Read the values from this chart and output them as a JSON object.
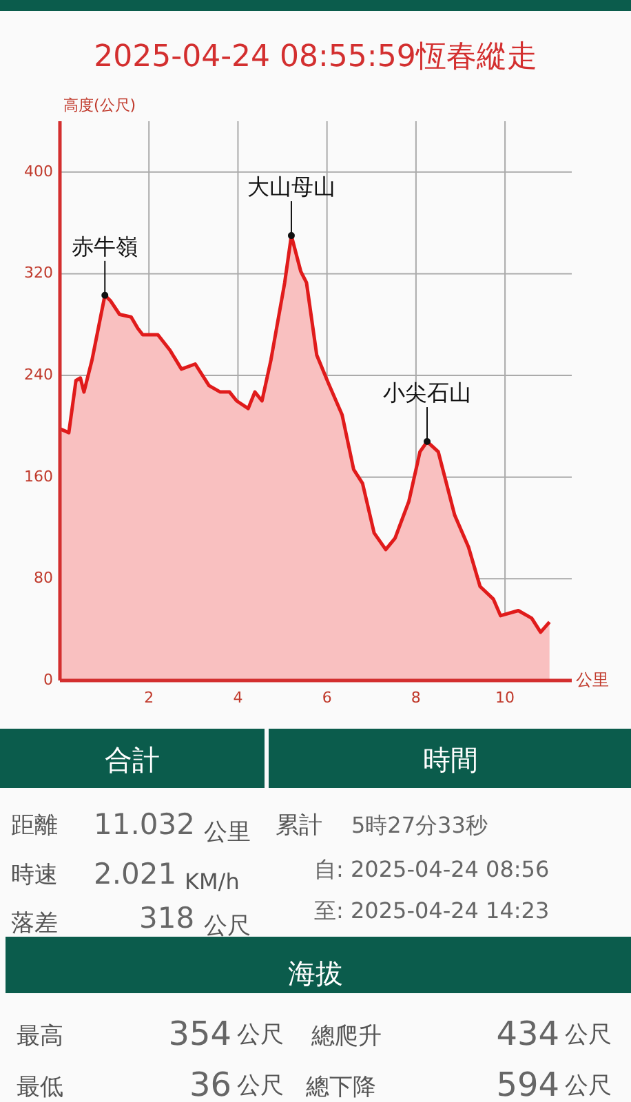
{
  "chart_data": [
    {
      "type": "area",
      "title": "2025-04-24 08:55:59恆春縱走",
      "xlabel": "公里",
      "ylabel": "高度(公尺)",
      "x": [
        0,
        0.2,
        0.36,
        0.46,
        0.54,
        0.72,
        1.01,
        1.13,
        1.34,
        1.6,
        1.75,
        1.86,
        2.2,
        2.47,
        2.73,
        3.04,
        3.35,
        3.6,
        3.81,
        3.97,
        4.23,
        4.38,
        4.54,
        4.74,
        5.05,
        5.2,
        5.41,
        5.54,
        5.77,
        6.03,
        6.34,
        6.6,
        6.8,
        7.06,
        7.32,
        7.53,
        7.84,
        8.09,
        8.25,
        8.5,
        8.87,
        9.18,
        9.44,
        9.74,
        9.9,
        10.3,
        10.6,
        10.8,
        11.0
      ],
      "series": [
        {
          "color": "#e01b1b",
          "values": [
            198,
            195,
            236,
            238,
            227,
            252,
            303,
            299,
            288,
            286,
            277,
            272,
            272,
            260,
            245,
            249,
            232,
            227,
            227,
            220,
            214,
            227,
            220,
            252,
            313,
            350,
            322,
            313,
            256,
            234,
            209,
            166,
            155,
            116,
            103,
            112,
            141,
            180,
            188,
            180,
            130,
            105,
            74,
            64,
            51,
            55,
            49,
            38,
            46
          ]
        }
      ],
      "xlim": [
        0,
        11.5
      ],
      "ylim": [
        0,
        440
      ],
      "xticks": [
        2,
        4,
        6,
        8,
        10
      ],
      "yticks": [
        0,
        80,
        160,
        240,
        320,
        400
      ],
      "grid": true,
      "annotations": [
        {
          "text": "赤牛嶺",
          "x": 1.01,
          "y": 303
        },
        {
          "text": "大山母山",
          "x": 5.2,
          "y": 350
        },
        {
          "text": "小尖石山",
          "x": 8.25,
          "y": 188
        }
      ]
    },
    {
      "type": "other",
      "annotations": [
        "合計",
        "時間",
        "距離",
        "11.032",
        "公里",
        "累計",
        "5時27分33秒",
        "時速",
        "2.021",
        "KM/h",
        "自: 2025-04-24 08:56",
        "落差",
        "318",
        "公尺",
        "至: 2025-04-24 14:23",
        "海拔",
        "最高",
        "354",
        "公尺",
        "總爬升",
        "434",
        "公尺",
        "最低",
        "36",
        "公尺",
        "總下降",
        "594",
        "公尺"
      ]
    }
  ]
}
